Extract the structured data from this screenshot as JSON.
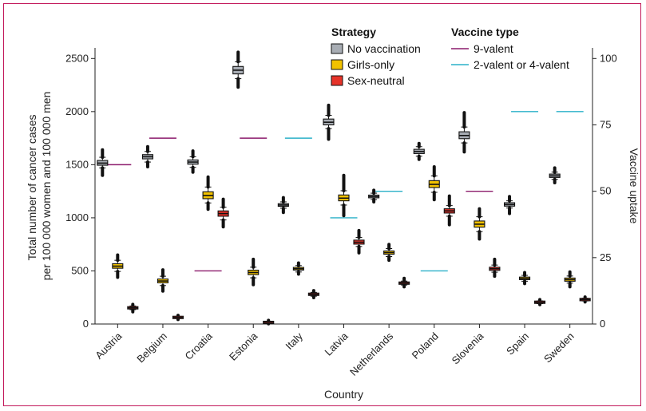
{
  "chart_data": {
    "type": "boxplot",
    "xlabel": "Country",
    "ylabel_lines": [
      "Total number of cancer cases",
      "per 100 000 women and 100 000 men"
    ],
    "y2label": "Vaccine uptake",
    "ylim": [
      0,
      2600
    ],
    "y2lim": [
      0,
      104
    ],
    "yticks": [
      0,
      500,
      1000,
      1500,
      2000,
      2500
    ],
    "y2ticks": [
      0,
      25,
      50,
      75,
      100
    ],
    "categories": [
      "Austria",
      "Belgium",
      "Croatia",
      "Estonia",
      "Italy",
      "Latvia",
      "Netherlands",
      "Poland",
      "Slovenia",
      "Spain",
      "Sweden"
    ],
    "legend": {
      "strategy_title": "Strategy",
      "vaccine_title": "Vaccine type",
      "strategies": [
        {
          "name": "No vaccination",
          "color": "#a8adb4"
        },
        {
          "name": "Girls-only",
          "color": "#f2c200"
        },
        {
          "name": "Sex-neutral",
          "color": "#e63329"
        }
      ],
      "vaccines": [
        {
          "name": "9-valent",
          "color": "#8b1a6b"
        },
        {
          "name": "2-valent or 4-valent",
          "color": "#2ab0c8"
        }
      ]
    },
    "series": [
      {
        "name": "No vaccination",
        "boxes": [
          {
            "median": 1515,
            "q1": 1495,
            "q3": 1540,
            "wlo": 1470,
            "whi": 1570,
            "omin": 1400,
            "omax": 1640
          },
          {
            "median": 1575,
            "q1": 1555,
            "q3": 1595,
            "wlo": 1525,
            "whi": 1625,
            "omin": 1480,
            "omax": 1670
          },
          {
            "median": 1525,
            "q1": 1505,
            "q3": 1545,
            "wlo": 1475,
            "whi": 1575,
            "omin": 1430,
            "omax": 1630
          },
          {
            "median": 2390,
            "q1": 2355,
            "q3": 2425,
            "wlo": 2310,
            "whi": 2470,
            "omin": 2230,
            "omax": 2560
          },
          {
            "median": 1120,
            "q1": 1108,
            "q3": 1133,
            "wlo": 1090,
            "whi": 1150,
            "omin": 1050,
            "omax": 1190
          },
          {
            "median": 1900,
            "q1": 1875,
            "q3": 1930,
            "wlo": 1840,
            "whi": 1965,
            "omin": 1740,
            "omax": 2060
          },
          {
            "median": 1200,
            "q1": 1188,
            "q3": 1214,
            "wlo": 1172,
            "whi": 1232,
            "omin": 1150,
            "omax": 1260
          },
          {
            "median": 1625,
            "q1": 1605,
            "q3": 1645,
            "wlo": 1580,
            "whi": 1670,
            "omin": 1550,
            "omax": 1700
          },
          {
            "median": 1775,
            "q1": 1745,
            "q3": 1810,
            "wlo": 1705,
            "whi": 1855,
            "omin": 1620,
            "omax": 1990
          },
          {
            "median": 1125,
            "q1": 1110,
            "q3": 1142,
            "wlo": 1092,
            "whi": 1160,
            "omin": 1040,
            "omax": 1200
          },
          {
            "median": 1395,
            "q1": 1380,
            "q3": 1412,
            "wlo": 1362,
            "whi": 1430,
            "omin": 1330,
            "omax": 1470
          }
        ]
      },
      {
        "name": "Girls-only",
        "boxes": [
          {
            "median": 545,
            "q1": 525,
            "q3": 568,
            "wlo": 495,
            "whi": 600,
            "omin": 440,
            "omax": 650
          },
          {
            "median": 405,
            "q1": 388,
            "q3": 424,
            "wlo": 362,
            "whi": 450,
            "omin": 310,
            "omax": 510
          },
          {
            "median": 1210,
            "q1": 1180,
            "q3": 1245,
            "wlo": 1140,
            "whi": 1290,
            "omin": 1080,
            "omax": 1385
          },
          {
            "median": 485,
            "q1": 465,
            "q3": 507,
            "wlo": 435,
            "whi": 535,
            "omin": 370,
            "omax": 610
          },
          {
            "median": 520,
            "q1": 508,
            "q3": 533,
            "wlo": 490,
            "whi": 550,
            "omin": 470,
            "omax": 575
          },
          {
            "median": 1185,
            "q1": 1160,
            "q3": 1215,
            "wlo": 1120,
            "whi": 1255,
            "omin": 1020,
            "omax": 1400
          },
          {
            "median": 672,
            "q1": 657,
            "q3": 688,
            "wlo": 635,
            "whi": 710,
            "omin": 600,
            "omax": 750
          },
          {
            "median": 1315,
            "q1": 1285,
            "q3": 1350,
            "wlo": 1240,
            "whi": 1395,
            "omin": 1170,
            "omax": 1480
          },
          {
            "median": 940,
            "q1": 912,
            "q3": 970,
            "wlo": 870,
            "whi": 1010,
            "omin": 800,
            "omax": 1085
          },
          {
            "median": 428,
            "q1": 418,
            "q3": 442,
            "wlo": 403,
            "whi": 458,
            "omin": 380,
            "omax": 485
          },
          {
            "median": 418,
            "q1": 403,
            "q3": 433,
            "wlo": 385,
            "whi": 452,
            "omin": 350,
            "omax": 490
          }
        ]
      },
      {
        "name": "Sex-neutral",
        "boxes": [
          {
            "median": 152,
            "q1": 145,
            "q3": 160,
            "wlo": 135,
            "whi": 170,
            "omin": 115,
            "omax": 185
          },
          {
            "median": 62,
            "q1": 58,
            "q3": 66,
            "wlo": 52,
            "whi": 72,
            "omin": 42,
            "omax": 82
          },
          {
            "median": 1040,
            "q1": 1015,
            "q3": 1065,
            "wlo": 980,
            "whi": 1100,
            "omin": 915,
            "omax": 1175
          },
          {
            "median": 15,
            "q1": 12,
            "q3": 18,
            "wlo": 8,
            "whi": 22,
            "omin": 2,
            "omax": 35
          },
          {
            "median": 280,
            "q1": 272,
            "q3": 288,
            "wlo": 262,
            "whi": 298,
            "omin": 248,
            "omax": 315
          },
          {
            "median": 770,
            "q1": 752,
            "q3": 790,
            "wlo": 730,
            "whi": 815,
            "omin": 670,
            "omax": 880
          },
          {
            "median": 385,
            "q1": 377,
            "q3": 393,
            "wlo": 367,
            "whi": 404,
            "omin": 350,
            "omax": 430
          },
          {
            "median": 1065,
            "q1": 1045,
            "q3": 1085,
            "wlo": 1015,
            "whi": 1115,
            "omin": 935,
            "omax": 1205
          },
          {
            "median": 520,
            "q1": 505,
            "q3": 535,
            "wlo": 488,
            "whi": 555,
            "omin": 450,
            "omax": 610
          },
          {
            "median": 205,
            "q1": 199,
            "q3": 211,
            "wlo": 192,
            "whi": 218,
            "omin": 182,
            "omax": 230
          },
          {
            "median": 230,
            "q1": 224,
            "q3": 236,
            "wlo": 217,
            "whi": 243,
            "omin": 208,
            "omax": 255
          }
        ]
      }
    ],
    "uptake": [
      {
        "value": 60,
        "type": "9-valent"
      },
      {
        "value": 70,
        "type": "9-valent"
      },
      {
        "value": 20,
        "type": "9-valent"
      },
      {
        "value": 70,
        "type": "9-valent"
      },
      {
        "value": 70,
        "type": "2-valent or 4-valent"
      },
      {
        "value": 40,
        "type": "2-valent or 4-valent"
      },
      {
        "value": 50,
        "type": "2-valent or 4-valent"
      },
      {
        "value": 20,
        "type": "2-valent or 4-valent"
      },
      {
        "value": 50,
        "type": "9-valent"
      },
      {
        "value": 80,
        "type": "2-valent or 4-valent"
      },
      {
        "value": 80,
        "type": "2-valent or 4-valent"
      }
    ]
  }
}
